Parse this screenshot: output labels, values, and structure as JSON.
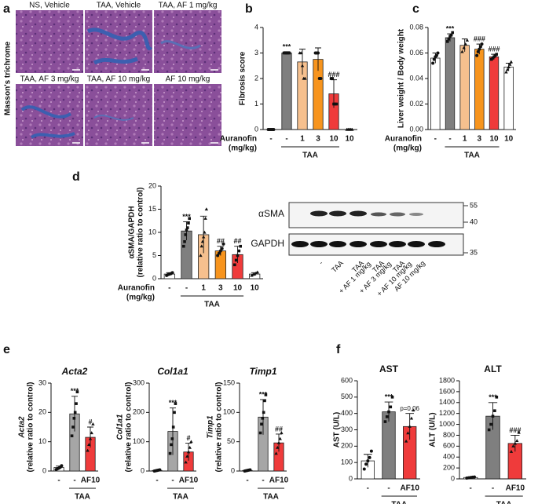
{
  "panel_labels": [
    "a",
    "b",
    "c",
    "d",
    "e",
    "f"
  ],
  "histology": {
    "side_label": "Masson's trichrome",
    "images": [
      "NS, Vehicle",
      "TAA, Vehicle",
      "TAA, AF 1 mg/kg",
      "TAA, AF 3 mg/kg",
      "TAA, AF 10 mg/kg",
      "AF 10 mg/kg"
    ]
  },
  "western_blot": {
    "bands": [
      "αSMA",
      "GAPDH"
    ],
    "markers": [
      "55",
      "40",
      "35"
    ],
    "lanes": [
      [
        "-"
      ],
      [
        "TAA"
      ],
      [
        "TAA",
        "+ AF 1 mg/kg"
      ],
      [
        "TAA",
        "+ AF 3 mg/kg"
      ],
      [
        "TAA",
        "+ AF 10 mg/kg"
      ],
      [
        "AF 10 mg/kg"
      ]
    ]
  },
  "chart_data": [
    {
      "type": "bar",
      "ylabel": [
        "Fibrosis score"
      ],
      "xlabel": [
        "Auranofin",
        "(mg/kg)"
      ],
      "group_label": "TAA",
      "categories": [
        "-",
        "-",
        "1",
        "3",
        "10",
        "10"
      ],
      "values": [
        0,
        3,
        2.65,
        2.75,
        1.4,
        0
      ],
      "errors": [
        0.03,
        0.05,
        0.5,
        0.45,
        0.55,
        0.03
      ],
      "points": [
        [
          0,
          0,
          0,
          0,
          0
        ],
        [
          3,
          3,
          3,
          3,
          3
        ],
        [
          3,
          3,
          2.5,
          2,
          2
        ],
        [
          3,
          3,
          3,
          2,
          2
        ],
        [
          2,
          2,
          1,
          1,
          1
        ],
        [
          0,
          0,
          0,
          0,
          0
        ]
      ],
      "annotations": [
        null,
        "***",
        null,
        null,
        "###",
        null
      ],
      "colors": [
        "#ffffff",
        "#7f7f7f",
        "#f6c08e",
        "#f7941d",
        "#ef3b3b",
        "#ffffff"
      ],
      "ylim": [
        0,
        4
      ],
      "yticks": [
        0,
        1,
        2,
        3,
        4
      ]
    },
    {
      "type": "bar",
      "ylabel": [
        "Liver weight / Body weight"
      ],
      "xlabel": [
        "Auranofin",
        "(mg/kg)"
      ],
      "group_label": "TAA",
      "categories": [
        "-",
        "-",
        "1",
        "3",
        "10",
        "10"
      ],
      "values": [
        0.056,
        0.072,
        0.066,
        0.063,
        0.057,
        0.049
      ],
      "errors": [
        0.004,
        0.003,
        0.005,
        0.004,
        0.002,
        0.003
      ],
      "points": [
        [
          0.052,
          0.055,
          0.057,
          0.058,
          0.06
        ],
        [
          0.069,
          0.071,
          0.073,
          0.074,
          0.076
        ],
        [
          0.061,
          0.064,
          0.067,
          0.07
        ],
        [
          0.058,
          0.061,
          0.063,
          0.065,
          0.067
        ],
        [
          0.055,
          0.056,
          0.057,
          0.058,
          0.059
        ],
        [
          0.045,
          0.047,
          0.049,
          0.051,
          0.053
        ]
      ],
      "annotations": [
        null,
        "***",
        null,
        "###",
        "###",
        null
      ],
      "colors": [
        "#ffffff",
        "#7f7f7f",
        "#f6c08e",
        "#f7941d",
        "#ef3b3b",
        "#ffffff"
      ],
      "ylim": [
        0,
        0.08
      ],
      "yticks": [
        {
          "value": 0,
          "label": "0.00"
        },
        {
          "value": 0.02,
          "label": "0.02"
        },
        {
          "value": 0.04,
          "label": "0.04"
        },
        {
          "value": 0.06,
          "label": "0.06"
        },
        {
          "value": 0.08,
          "label": "0.08"
        }
      ]
    },
    {
      "type": "bar",
      "ylabel": [
        "αSMA/GAPDH",
        "(relative ratio to control)"
      ],
      "xlabel": [
        "Auranofin",
        "(mg/kg)"
      ],
      "group_label": "TAA",
      "categories": [
        "-",
        "-",
        "1",
        "3",
        "10",
        "10"
      ],
      "values": [
        1,
        10.3,
        9.5,
        6,
        5.2,
        1
      ],
      "errors": [
        0.3,
        2,
        4,
        1,
        1.8,
        0.3
      ],
      "points": [
        [
          0.7,
          0.9,
          1,
          1.1,
          1.3
        ],
        [
          7,
          8,
          9.5,
          10.5,
          11,
          12,
          13
        ],
        [
          5,
          7,
          8,
          9,
          10,
          13,
          15
        ],
        [
          5,
          5.5,
          6,
          6.5,
          7.5
        ],
        [
          3,
          4,
          5,
          6,
          7
        ],
        [
          0.7,
          0.9,
          1,
          1.2,
          1.4
        ]
      ],
      "annotations": [
        null,
        "***",
        null,
        "##",
        "##",
        null
      ],
      "colors": [
        "#ffffff",
        "#7f7f7f",
        "#f6c08e",
        "#f7941d",
        "#ef3b3b",
        "#ffffff"
      ],
      "ylim": [
        0,
        20
      ],
      "yticks": [
        0,
        5,
        10,
        15,
        20
      ]
    },
    {
      "type": "bar",
      "title": "Acta2",
      "italic": true,
      "ylabel": [
        "Acta2",
        "(relative ratio to control)"
      ],
      "group_label": "TAA",
      "categories": [
        "-",
        "-",
        "AF10"
      ],
      "values": [
        1.2,
        19.5,
        11.5
      ],
      "errors": [
        0.5,
        6,
        3.5
      ],
      "points": [
        [
          0.5,
          0.8,
          1,
          1.3,
          1.8
        ],
        [
          12,
          15,
          18,
          20,
          23,
          27
        ],
        [
          7,
          9,
          11,
          13,
          16
        ]
      ],
      "annotations": [
        null,
        "***",
        "#"
      ],
      "colors": [
        "#ffffff",
        "#a6a6a6",
        "#ef3b3b"
      ],
      "ylim": [
        0,
        30
      ],
      "yticks": [
        0,
        10,
        20,
        30
      ]
    },
    {
      "type": "bar",
      "title": "Col1a1",
      "italic": true,
      "ylabel": [
        "Col1a1",
        "(relative ratio to control)"
      ],
      "group_label": "TAA",
      "categories": [
        "-",
        "-",
        "AF10"
      ],
      "values": [
        2,
        135,
        65
      ],
      "errors": [
        2,
        80,
        30
      ],
      "points": [
        [
          0,
          1,
          2,
          3,
          4
        ],
        [
          60,
          90,
          110,
          150,
          200,
          230
        ],
        [
          30,
          50,
          65,
          80,
          100
        ]
      ],
      "annotations": [
        null,
        "***",
        "#"
      ],
      "colors": [
        "#ffffff",
        "#a6a6a6",
        "#ef3b3b"
      ],
      "ylim": [
        0,
        300
      ],
      "yticks": [
        0,
        100,
        200,
        300
      ]
    },
    {
      "type": "bar",
      "title": "Timp1",
      "italic": true,
      "ylabel": [
        "Timp1",
        "(relative ratio to control)"
      ],
      "group_label": "TAA",
      "categories": [
        "-",
        "-",
        "AF10"
      ],
      "values": [
        1,
        92,
        48
      ],
      "errors": [
        1,
        30,
        15
      ],
      "points": [
        [
          0,
          0.5,
          1,
          1.5,
          2
        ],
        [
          65,
          80,
          90,
          100,
          120,
          130
        ],
        [
          30,
          40,
          48,
          55,
          65
        ]
      ],
      "annotations": [
        null,
        "***",
        "##"
      ],
      "colors": [
        "#ffffff",
        "#a6a6a6",
        "#ef3b3b"
      ],
      "ylim": [
        0,
        150
      ],
      "yticks": [
        0,
        50,
        100,
        150
      ]
    },
    {
      "type": "bar",
      "title": "AST",
      "ylabel": [
        "AST (U/L)"
      ],
      "group_label": "TAA",
      "categories": [
        "-",
        "-",
        "AF10"
      ],
      "values": [
        110,
        410,
        320
      ],
      "errors": [
        40,
        60,
        80
      ],
      "points": [
        [
          60,
          90,
          110,
          130,
          170
        ],
        [
          350,
          380,
          410,
          440,
          500
        ],
        [
          230,
          280,
          320,
          370,
          420
        ]
      ],
      "annotations": [
        null,
        "***",
        "p=0.06"
      ],
      "colors": [
        "#ffffff",
        "#7f7f7f",
        "#ef3b3b"
      ],
      "ylim": [
        0,
        600
      ],
      "yticks": [
        0,
        100,
        200,
        300,
        400,
        500,
        600
      ]
    },
    {
      "type": "bar",
      "title": "ALT",
      "ylabel": [
        "ALT (U/L)"
      ],
      "group_label": "TAA",
      "categories": [
        "-",
        "-",
        "AF10"
      ],
      "values": [
        25,
        1150,
        650
      ],
      "errors": [
        10,
        250,
        150
      ],
      "points": [
        [
          15,
          20,
          25,
          30,
          35
        ],
        [
          900,
          1000,
          1150,
          1250,
          1500
        ],
        [
          500,
          600,
          650,
          700,
          850
        ]
      ],
      "annotations": [
        null,
        "***",
        "###"
      ],
      "colors": [
        "#ffffff",
        "#7f7f7f",
        "#ef3b3b"
      ],
      "ylim": [
        0,
        1800
      ],
      "yticks": [
        0,
        200,
        400,
        600,
        800,
        1000,
        1200,
        1400,
        1600,
        1800
      ]
    }
  ]
}
